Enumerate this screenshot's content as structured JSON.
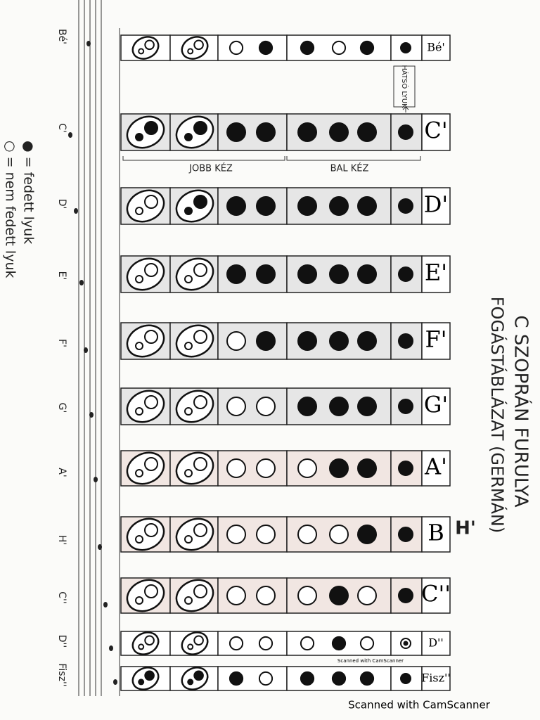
{
  "title_line1": "C SZOPRÁN FURULYA",
  "title_line2": "FOGÁSTÁBLÁZAT (GERMÁN)",
  "legend": {
    "closed": "● = fedett lyuk",
    "open": "○ = nem fedett lyuk"
  },
  "back_hole": "HÁTSÓ LYUK",
  "right_hand": "JOBB KÉZ",
  "left_hand": "BAL KÉZ",
  "b_alt": "H'",
  "scanner_small": "Scanned with CamScanner",
  "scanner": "Scanned with CamScanner",
  "staff_notes": [
    "Bé'",
    "C'",
    "D'",
    "E'",
    "F'",
    "G'",
    "A'",
    "H'",
    "C''",
    "D''",
    "Fisz''"
  ],
  "rows": [
    {
      "label": "Bé'",
      "holes": [
        [
          0,
          0
        ],
        [
          0,
          0
        ],
        0,
        1,
        1,
        0,
        1,
        1
      ]
    },
    {
      "label": "C'",
      "holes": [
        [
          1,
          1
        ],
        [
          1,
          1
        ],
        1,
        1,
        1,
        1,
        1,
        1
      ]
    },
    {
      "label": "D'",
      "holes": [
        [
          0,
          0
        ],
        [
          1,
          1
        ],
        1,
        1,
        1,
        1,
        1,
        1
      ]
    },
    {
      "label": "E'",
      "holes": [
        [
          0,
          0
        ],
        [
          0,
          0
        ],
        1,
        1,
        1,
        1,
        1,
        1
      ]
    },
    {
      "label": "F'",
      "holes": [
        [
          0,
          0
        ],
        [
          0,
          0
        ],
        0,
        1,
        1,
        1,
        1,
        1
      ]
    },
    {
      "label": "G'",
      "holes": [
        [
          0,
          0
        ],
        [
          0,
          0
        ],
        0,
        0,
        1,
        1,
        1,
        1
      ]
    },
    {
      "label": "A'",
      "holes": [
        [
          0,
          0
        ],
        [
          0,
          0
        ],
        0,
        0,
        0,
        1,
        1,
        1
      ]
    },
    {
      "label": "B",
      "holes": [
        [
          0,
          0
        ],
        [
          0,
          0
        ],
        0,
        0,
        0,
        0,
        1,
        1
      ]
    },
    {
      "label": "C''",
      "holes": [
        [
          0,
          0
        ],
        [
          0,
          0
        ],
        0,
        0,
        0,
        1,
        0,
        1
      ]
    },
    {
      "label": "D''",
      "holes": [
        [
          0,
          0
        ],
        [
          0,
          0
        ],
        0,
        0,
        0,
        1,
        0,
        0.5
      ]
    },
    {
      "label": "Fisz''",
      "holes": [
        [
          1,
          1
        ],
        [
          1,
          1
        ],
        1,
        0,
        1,
        1,
        1,
        1
      ]
    }
  ]
}
